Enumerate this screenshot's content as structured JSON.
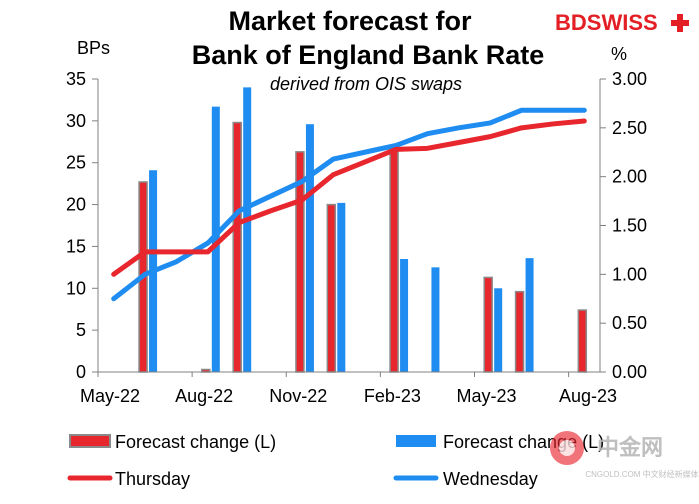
{
  "brand": {
    "logo_text": "BDSWISS",
    "logo_color": "#e31e24",
    "watermark_text": "中金网",
    "watermark_sub": "CNGOLD.COM 中文财经新媒体"
  },
  "chart_data": {
    "type": "bar",
    "title": [
      "Market forecast for",
      "Bank of England Bank Rate"
    ],
    "subtitle": "derived from OIS swaps",
    "y_left_unit": "BPs",
    "y_right_unit": "%",
    "y_left_range": [
      0,
      35
    ],
    "y_right_range": [
      0,
      3
    ],
    "y_left_ticks": [
      "0",
      "5",
      "10",
      "15",
      "20",
      "25",
      "30",
      "35"
    ],
    "y_right_ticks": [
      "0.00",
      "0.50",
      "1.00",
      "1.50",
      "2.00",
      "2.50",
      "3.00"
    ],
    "x_tick_labels": [
      "May-22",
      "Aug-22",
      "Nov-22",
      "Feb-23",
      "May-23",
      "Aug-23"
    ],
    "categories": [
      "May-22",
      "Jun-22",
      "Jul-22",
      "Aug-22",
      "Sep-22",
      "Oct-22",
      "Nov-22",
      "Dec-22",
      "Jan-23",
      "Feb-23",
      "Mar-23",
      "Apr-23",
      "May-23",
      "Jun-23",
      "Jul-23",
      "Aug-23"
    ],
    "series": [
      {
        "name": "Forecast change (L)",
        "kind": "bar",
        "axis": "left",
        "color": "#e8262d",
        "outline": "#8a8a8a",
        "values": [
          null,
          22.7,
          null,
          0.3,
          29.8,
          null,
          26.3,
          20.0,
          null,
          26.5,
          null,
          null,
          11.3,
          9.6,
          null,
          7.4
        ]
      },
      {
        "name": "Forecast change (L)",
        "kind": "bar",
        "axis": "left",
        "color": "#1e8cf0",
        "values": [
          null,
          24.1,
          null,
          31.7,
          34.0,
          null,
          29.6,
          20.2,
          null,
          13.5,
          12.5,
          null,
          10.0,
          13.6,
          null,
          null
        ]
      },
      {
        "name": "Thursday",
        "kind": "line",
        "axis": "right",
        "color": "#e8262d",
        "values": [
          1.0,
          1.23,
          1.23,
          1.23,
          1.53,
          1.65,
          1.76,
          2.02,
          2.15,
          2.28,
          2.29,
          2.35,
          2.41,
          2.5,
          2.54,
          2.57
        ]
      },
      {
        "name": "Wednesday",
        "kind": "line",
        "axis": "right",
        "color": "#1e8cf0",
        "values": [
          0.75,
          1.0,
          1.13,
          1.32,
          1.65,
          1.8,
          1.95,
          2.18,
          2.25,
          2.32,
          2.44,
          2.5,
          2.55,
          2.68,
          2.68,
          2.68
        ]
      }
    ],
    "legend": [
      {
        "label": "Forecast change (L)",
        "swatch": "bar",
        "color": "#e8262d",
        "outline": "#8a8a8a"
      },
      {
        "label": "Forecast change (L)",
        "swatch": "bar",
        "color": "#1e8cf0"
      },
      {
        "label": "Thursday",
        "swatch": "line",
        "color": "#e8262d"
      },
      {
        "label": "Wednesday",
        "swatch": "line",
        "color": "#1e8cf0"
      }
    ],
    "legend_position": "bottom",
    "grid": false
  }
}
